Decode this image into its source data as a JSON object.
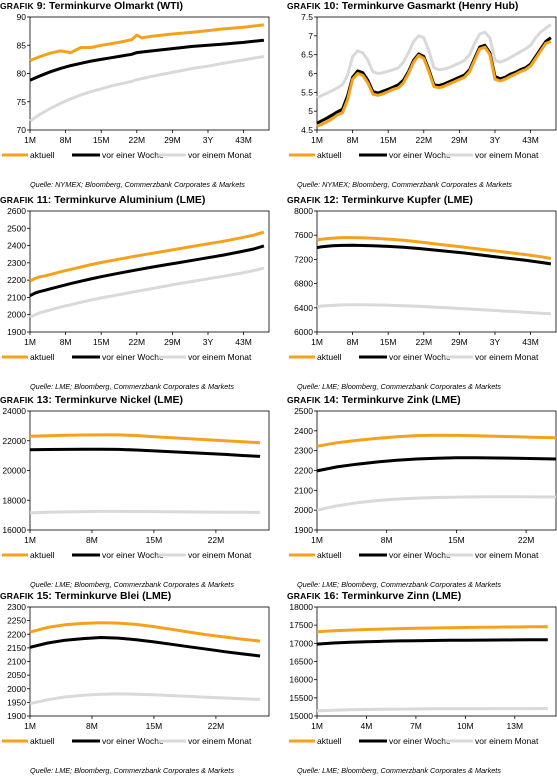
{
  "colors": {
    "aktuell": "#f5a11c",
    "woche": "#000000",
    "monat": "#d9d9d9"
  },
  "legend_labels": [
    "aktuell",
    "vor einer Woche",
    "vor einem Monat"
  ],
  "panels": [
    {
      "title_prefix": "GRAFIK",
      "title_num": "9:",
      "title_text": "Terminkurve Olmarkt (WTI)",
      "source": "Quelle: NYMEX; Bloomberg, Commerzbank Corporates & Markets"
    },
    {
      "title_prefix": "GRAFIK",
      "title_num": "10:",
      "title_text": "Terminkurve Gasmarkt (Henry Hub)",
      "source": "Quelle: NYMEX; Bloomberg, Commerzbank Corporates & Markets"
    },
    {
      "title_prefix": "GRAFIK",
      "title_num": "11:",
      "title_text": "Terminkurve Aluminium (LME)",
      "source": "Quelle: LME; Bloomberg, Commerzbank Corporates & Markets"
    },
    {
      "title_prefix": "GRAFIK",
      "title_num": "12:",
      "title_text": "Terminkurve Kupfer (LME)",
      "source": "Quelle: LME; Bloomberg, Commerzbank Corporates & Markets"
    },
    {
      "title_prefix": "GRAFIK",
      "title_num": "13:",
      "title_text": "Terminkurve Nickel (LME)",
      "source": "Quelle: LME; Bloomberg, Commerzbank Corporates & Markets"
    },
    {
      "title_prefix": "GRAFIK",
      "title_num": "14:",
      "title_text": "Terminkurve Zink (LME)",
      "source": "Quelle: LME; Bloomberg, Commerzbank Corporates & Markets"
    },
    {
      "title_prefix": "GRAFIK",
      "title_num": "15:",
      "title_text": "Terminkurve Blei (LME)",
      "source": "Quelle: LME; Bloomberg, Commerzbank Corporates & Markets"
    },
    {
      "title_prefix": "GRAFIK",
      "title_num": "16:",
      "title_text": "Terminkurve Zinn (LME)",
      "source": "Quelle: LME; Bloomberg, Commerzbank Corporates & Markets"
    }
  ],
  "chart_data": [
    {
      "type": "line",
      "title": "Terminkurve Olmarkt (WTI)",
      "categories": [
        "1M",
        "8M",
        "15M",
        "22M",
        "29M",
        "3Y",
        "43M"
      ],
      "ylim": [
        70,
        90
      ],
      "yticks": [
        70,
        75,
        80,
        85,
        90
      ],
      "x": [
        1,
        3,
        5,
        7,
        9,
        11,
        13,
        15,
        17,
        19,
        21,
        22,
        23,
        25,
        29,
        33,
        36,
        39,
        43,
        47
      ],
      "series": [
        {
          "name": "aktuell",
          "values": [
            82.3,
            83.0,
            83.6,
            84.0,
            83.7,
            84.6,
            84.6,
            85.0,
            85.3,
            85.6,
            86.0,
            86.8,
            86.3,
            86.6,
            87.0,
            87.3,
            87.6,
            87.9,
            88.2,
            88.6
          ]
        },
        {
          "name": "vor einer Woche",
          "values": [
            78.8,
            79.6,
            80.3,
            80.9,
            81.4,
            81.8,
            82.2,
            82.5,
            82.8,
            83.1,
            83.4,
            83.7,
            83.8,
            84.0,
            84.4,
            84.8,
            85.0,
            85.2,
            85.5,
            85.9
          ]
        },
        {
          "name": "vor einem Monat",
          "values": [
            71.6,
            72.8,
            73.8,
            74.7,
            75.5,
            76.2,
            76.8,
            77.3,
            77.8,
            78.2,
            78.6,
            78.9,
            79.1,
            79.5,
            80.2,
            80.9,
            81.3,
            81.8,
            82.4,
            83.0
          ]
        }
      ]
    },
    {
      "type": "line",
      "title": "Terminkurve Gasmarkt (Henry Hub)",
      "categories": [
        "1M",
        "8M",
        "15M",
        "22M",
        "29M",
        "3Y",
        "43M"
      ],
      "ylim": [
        4.5,
        7.5
      ],
      "yticks": [
        4.5,
        5.0,
        5.5,
        6.0,
        6.5,
        7.0,
        7.5
      ],
      "x": [
        1,
        2,
        3,
        4,
        5,
        6,
        7,
        8,
        9,
        10,
        11,
        12,
        13,
        14,
        15,
        16,
        17,
        18,
        19,
        20,
        21,
        22,
        23,
        24,
        25,
        26,
        27,
        28,
        29,
        30,
        31,
        32,
        33,
        34,
        35,
        36,
        37,
        38,
        39,
        40,
        41,
        42,
        43,
        44,
        45,
        46,
        47
      ],
      "series": [
        {
          "name": "aktuell",
          "values": [
            4.6,
            4.65,
            4.72,
            4.8,
            4.9,
            4.95,
            5.3,
            5.85,
            6.0,
            5.95,
            5.75,
            5.45,
            5.42,
            5.46,
            5.52,
            5.58,
            5.62,
            5.75,
            6.0,
            6.3,
            6.48,
            6.4,
            6.05,
            5.65,
            5.62,
            5.66,
            5.72,
            5.78,
            5.84,
            5.9,
            6.05,
            6.35,
            6.65,
            6.7,
            6.5,
            5.85,
            5.8,
            5.85,
            5.92,
            5.98,
            6.05,
            6.1,
            6.2,
            6.4,
            6.6,
            6.8,
            6.85
          ]
        },
        {
          "name": "vor einer Woche",
          "values": [
            4.68,
            4.75,
            4.82,
            4.9,
            4.98,
            5.05,
            5.4,
            5.9,
            6.07,
            6.02,
            5.82,
            5.52,
            5.48,
            5.53,
            5.58,
            5.64,
            5.7,
            5.82,
            6.05,
            6.35,
            6.52,
            6.45,
            6.1,
            5.7,
            5.68,
            5.72,
            5.78,
            5.84,
            5.9,
            5.96,
            6.1,
            6.4,
            6.7,
            6.75,
            6.55,
            5.92,
            5.86,
            5.9,
            5.98,
            6.03,
            6.1,
            6.15,
            6.25,
            6.45,
            6.65,
            6.85,
            6.95
          ]
        },
        {
          "name": "vor einem Monat",
          "values": [
            5.35,
            5.42,
            5.48,
            5.55,
            5.62,
            5.7,
            5.95,
            6.45,
            6.6,
            6.55,
            6.35,
            6.05,
            6.0,
            6.02,
            6.06,
            6.1,
            6.15,
            6.3,
            6.55,
            6.85,
            7.0,
            6.95,
            6.6,
            6.15,
            6.1,
            6.12,
            6.16,
            6.22,
            6.28,
            6.35,
            6.5,
            6.8,
            7.05,
            7.1,
            6.95,
            6.35,
            6.3,
            6.35,
            6.42,
            6.5,
            6.58,
            6.65,
            6.75,
            6.95,
            7.1,
            7.2,
            7.3
          ]
        }
      ]
    },
    {
      "type": "line",
      "title": "Terminkurve Aluminium (LME)",
      "categories": [
        "1M",
        "8M",
        "15M",
        "22M",
        "29M",
        "3Y",
        "43M"
      ],
      "ylim": [
        1900,
        2600
      ],
      "yticks": [
        1900,
        2000,
        2100,
        2200,
        2300,
        2400,
        2500,
        2600
      ],
      "x": [
        1,
        2,
        3,
        4,
        5,
        7,
        9,
        11,
        13,
        15,
        18,
        21,
        24,
        27,
        30,
        33,
        36,
        39,
        42,
        45,
        47
      ],
      "series": [
        {
          "name": "aktuell",
          "values": [
            2195,
            2210,
            2220,
            2225,
            2232,
            2248,
            2262,
            2276,
            2290,
            2302,
            2318,
            2335,
            2350,
            2365,
            2380,
            2395,
            2410,
            2425,
            2442,
            2460,
            2478
          ]
        },
        {
          "name": "vor einer Woche",
          "values": [
            2110,
            2125,
            2135,
            2142,
            2150,
            2165,
            2180,
            2194,
            2207,
            2220,
            2237,
            2254,
            2270,
            2285,
            2300,
            2315,
            2330,
            2345,
            2362,
            2380,
            2398
          ]
        },
        {
          "name": "vor einem Monat",
          "values": [
            1985,
            2000,
            2012,
            2020,
            2028,
            2044,
            2058,
            2072,
            2085,
            2097,
            2113,
            2130,
            2146,
            2162,
            2178,
            2193,
            2208,
            2222,
            2238,
            2255,
            2270
          ]
        }
      ]
    },
    {
      "type": "line",
      "title": "Terminkurve Kupfer (LME)",
      "categories": [
        "1M",
        "8M",
        "15M",
        "22M",
        "29M",
        "3Y",
        "43M"
      ],
      "ylim": [
        6000,
        8000
      ],
      "yticks": [
        6000,
        6400,
        6800,
        7200,
        7600,
        8000
      ],
      "x": [
        1,
        2,
        4,
        6,
        8,
        10,
        12,
        15,
        18,
        21,
        24,
        27,
        30,
        33,
        36,
        39,
        42,
        45,
        47
      ],
      "series": [
        {
          "name": "aktuell",
          "values": [
            7520,
            7535,
            7550,
            7560,
            7560,
            7555,
            7548,
            7535,
            7515,
            7490,
            7460,
            7430,
            7400,
            7370,
            7340,
            7310,
            7280,
            7245,
            7215
          ]
        },
        {
          "name": "vor einer Woche",
          "values": [
            7395,
            7410,
            7425,
            7432,
            7433,
            7430,
            7425,
            7415,
            7400,
            7380,
            7355,
            7330,
            7305,
            7275,
            7245,
            7215,
            7185,
            7150,
            7125
          ]
        },
        {
          "name": "vor einem Monat",
          "values": [
            6420,
            6430,
            6440,
            6448,
            6450,
            6450,
            6448,
            6443,
            6435,
            6425,
            6412,
            6398,
            6385,
            6370,
            6355,
            6340,
            6325,
            6310,
            6300
          ]
        }
      ]
    },
    {
      "type": "line",
      "title": "Terminkurve Nickel (LME)",
      "categories": [
        "1M",
        "8M",
        "15M",
        "22M"
      ],
      "ylim": [
        16000,
        24000
      ],
      "yticks": [
        16000,
        18000,
        20000,
        22000,
        24000
      ],
      "x": [
        1,
        3,
        5,
        7,
        9,
        11,
        13,
        15,
        17,
        19,
        21,
        23,
        25,
        27
      ],
      "series": [
        {
          "name": "aktuell",
          "values": [
            22300,
            22340,
            22370,
            22385,
            22395,
            22390,
            22350,
            22270,
            22200,
            22130,
            22070,
            22000,
            21930,
            21870
          ]
        },
        {
          "name": "vor einer Woche",
          "values": [
            21390,
            21410,
            21420,
            21430,
            21430,
            21420,
            21380,
            21320,
            21260,
            21200,
            21140,
            21080,
            21010,
            20950
          ]
        },
        {
          "name": "vor einem Monat",
          "values": [
            17150,
            17190,
            17220,
            17240,
            17250,
            17250,
            17245,
            17235,
            17225,
            17215,
            17205,
            17195,
            17190,
            17180
          ]
        }
      ]
    },
    {
      "type": "line",
      "title": "Terminkurve Zink (LME)",
      "categories": [
        "1M",
        "8M",
        "15M",
        "22M"
      ],
      "ylim": [
        1900,
        2500
      ],
      "yticks": [
        1900,
        2000,
        2100,
        2200,
        2300,
        2400,
        2500
      ],
      "x": [
        1,
        3,
        5,
        7,
        9,
        11,
        13,
        15,
        17,
        19,
        21,
        23,
        25
      ],
      "series": [
        {
          "name": "aktuell",
          "values": [
            2322,
            2340,
            2352,
            2362,
            2370,
            2376,
            2378,
            2377,
            2375,
            2373,
            2370,
            2367,
            2365
          ]
        },
        {
          "name": "vor einer Woche",
          "values": [
            2198,
            2218,
            2232,
            2243,
            2252,
            2258,
            2262,
            2264,
            2264,
            2263,
            2262,
            2260,
            2258
          ]
        },
        {
          "name": "vor einem Monat",
          "values": [
            2000,
            2022,
            2037,
            2048,
            2056,
            2061,
            2064,
            2066,
            2067,
            2068,
            2068,
            2067,
            2067
          ]
        }
      ]
    },
    {
      "type": "line",
      "title": "Terminkurve Blei (LME)",
      "categories": [
        "1M",
        "8M",
        "15M",
        "22M"
      ],
      "ylim": [
        1900,
        2300
      ],
      "yticks": [
        1900,
        1950,
        2000,
        2050,
        2100,
        2150,
        2200,
        2250,
        2300
      ],
      "x": [
        1,
        3,
        5,
        7,
        9,
        11,
        13,
        15,
        17,
        19,
        21,
        23,
        25,
        27
      ],
      "series": [
        {
          "name": "aktuell",
          "values": [
            2208,
            2225,
            2235,
            2240,
            2242,
            2241,
            2236,
            2228,
            2218,
            2208,
            2198,
            2190,
            2182,
            2175
          ]
        },
        {
          "name": "vor einer Woche",
          "values": [
            2152,
            2168,
            2178,
            2184,
            2188,
            2186,
            2180,
            2172,
            2163,
            2154,
            2145,
            2136,
            2128,
            2120
          ]
        },
        {
          "name": "vor einem Monat",
          "values": [
            1945,
            1960,
            1970,
            1976,
            1980,
            1981,
            1980,
            1978,
            1975,
            1972,
            1969,
            1966,
            1963,
            1961
          ]
        }
      ]
    },
    {
      "type": "line",
      "title": "Terminkurve Zinn (LME)",
      "categories": [
        "1M",
        "4M",
        "7M",
        "10M",
        "13M"
      ],
      "ylim": [
        15000,
        18000
      ],
      "yticks": [
        15000,
        15500,
        16000,
        16500,
        17000,
        17500,
        18000
      ],
      "x": [
        1,
        2,
        3,
        4,
        5,
        6,
        7,
        8,
        9,
        10,
        11,
        12,
        13,
        14,
        15
      ],
      "series": [
        {
          "name": "aktuell",
          "values": [
            17320,
            17345,
            17365,
            17380,
            17393,
            17405,
            17415,
            17423,
            17430,
            17436,
            17441,
            17446,
            17450,
            17454,
            17458
          ]
        },
        {
          "name": "vor einer Woche",
          "values": [
            16980,
            17010,
            17030,
            17045,
            17057,
            17066,
            17073,
            17079,
            17083,
            17087,
            17090,
            17092,
            17094,
            17096,
            17098
          ]
        },
        {
          "name": "vor einem Monat",
          "values": [
            15140,
            15160,
            15172,
            15180,
            15186,
            15190,
            15194,
            15197,
            15199,
            15201,
            15202,
            15203,
            15204,
            15205,
            15206
          ]
        }
      ]
    }
  ]
}
